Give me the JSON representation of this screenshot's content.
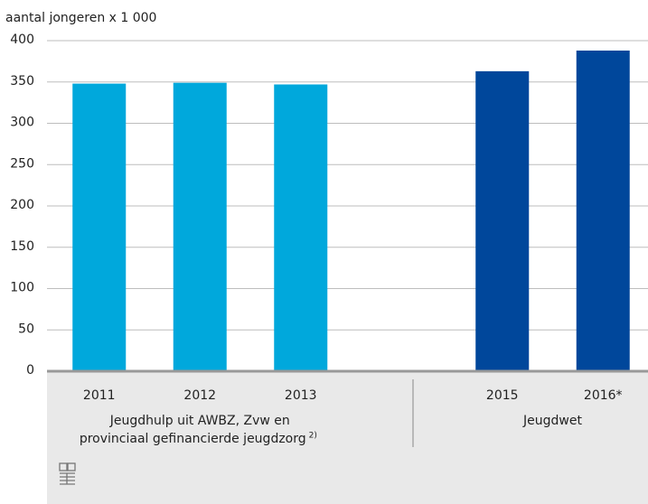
{
  "chart_data": {
    "type": "bar",
    "y_axis_label": "aantal jongeren x 1 000",
    "categories": [
      "2011",
      "2012",
      "2013",
      null,
      "2015",
      "2016*"
    ],
    "values": [
      348,
      349,
      347,
      null,
      363,
      388
    ],
    "colors": [
      "#00a8dc",
      "#00a8dc",
      "#00a8dc",
      null,
      "#00479b",
      "#00479b"
    ],
    "ylim": [
      0,
      400
    ],
    "yticks": [
      0,
      50,
      100,
      150,
      200,
      250,
      300,
      350,
      400
    ],
    "grid": true,
    "groups": [
      {
        "lines": [
          "Jeugdhulp uit AWBZ, Zvw en",
          "provinciaal gefinancierde jeugdzorg"
        ],
        "note": "2)"
      },
      {
        "lines": [
          "Jeugdwet"
        ]
      }
    ]
  }
}
